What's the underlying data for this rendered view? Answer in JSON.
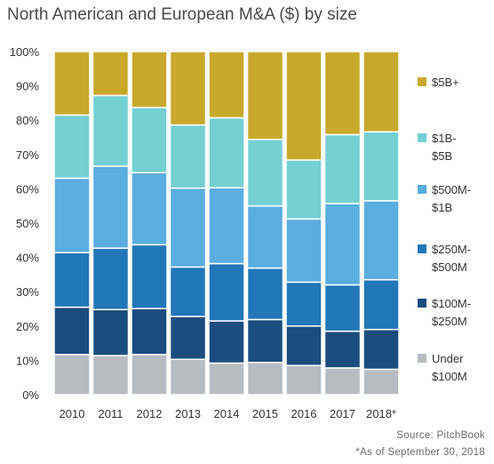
{
  "chart_data": {
    "type": "bar",
    "stacked": true,
    "title": "North American and European M&A ($) by size",
    "categories": [
      "2010",
      "2011",
      "2012",
      "2013",
      "2014",
      "2015",
      "2016",
      "2017",
      "2018*"
    ],
    "series": [
      {
        "name": "Under $100M",
        "legend_lines": [
          "Under",
          "$100M"
        ],
        "color": "#b7bcc2",
        "values": [
          11.7,
          11.4,
          11.7,
          10.3,
          9.2,
          9.4,
          8.5,
          7.8,
          7.4
        ]
      },
      {
        "name": "$100M-$250M",
        "legend_lines": [
          "$100M-",
          "$250M"
        ],
        "color": "#1b4d7e",
        "values": [
          13.8,
          13.4,
          13.4,
          12.5,
          12.3,
          12.5,
          11.5,
          10.7,
          11.6
        ]
      },
      {
        "name": "$250M-$500M",
        "legend_lines": [
          "$250M-",
          "$500M"
        ],
        "color": "#2177b8",
        "values": [
          15.9,
          17.9,
          18.6,
          14.4,
          16.7,
          15.0,
          12.8,
          13.5,
          14.5
        ]
      },
      {
        "name": "$500M-$1B",
        "legend_lines": [
          "$500M-",
          "$1B"
        ],
        "color": "#5aaee0",
        "values": [
          21.7,
          23.9,
          21.0,
          23.0,
          22.1,
          18.1,
          18.4,
          23.7,
          23.0
        ]
      },
      {
        "name": "$1B-$5B",
        "legend_lines": [
          "$1B-",
          "$5B"
        ],
        "color": "#74d0d3",
        "values": [
          18.4,
          20.6,
          19.0,
          18.4,
          20.4,
          19.4,
          17.2,
          20.1,
          20.1
        ]
      },
      {
        "name": "$5B+",
        "legend_lines": [
          "$5B+"
        ],
        "color": "#c9a92c",
        "values": [
          18.5,
          12.8,
          16.3,
          21.4,
          19.3,
          25.6,
          31.6,
          24.2,
          23.4
        ]
      }
    ],
    "yticks": [
      "0%",
      "10%",
      "20%",
      "30%",
      "40%",
      "50%",
      "60%",
      "70%",
      "80%",
      "90%",
      "100%"
    ],
    "ylim": [
      0,
      100
    ],
    "xlabel": "",
    "ylabel": "",
    "grid": false,
    "legend_position": "right"
  },
  "footnotes": {
    "source": "Source: PitchBook",
    "as_of": "*As of September 30, 2018"
  }
}
